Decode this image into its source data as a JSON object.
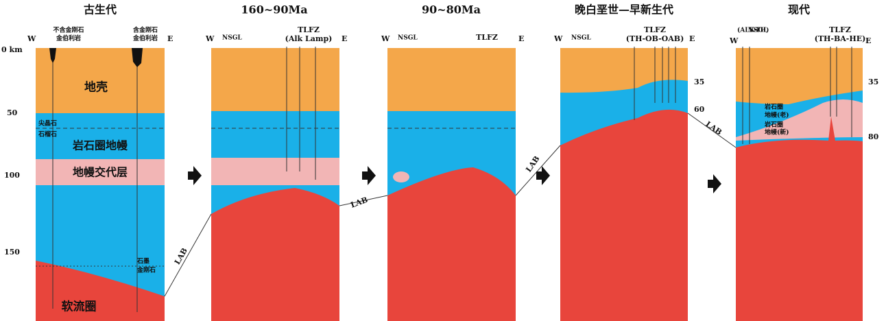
{
  "depth_axis": [
    "0 km",
    "50",
    "100",
    "150"
  ],
  "panels": [
    {
      "title": "古生代",
      "west": "W",
      "east": "E",
      "labels": [
        "不含金刚石",
        "金伯利岩",
        "含金刚石",
        "金伯利岩",
        "地壳",
        "尖晶石",
        "石榴石",
        "岩石圈地幔",
        "地幔交代层",
        "石墨",
        "金刚石",
        "软流圈",
        "LAB"
      ]
    },
    {
      "title": "160~90Ma",
      "west": "W",
      "east": "E",
      "labels": [
        "NSGL",
        "TLFZ",
        "(Alk Lamp)",
        "LAB"
      ]
    },
    {
      "title": "90~80Ma",
      "west": "W",
      "east": "E",
      "labels": [
        "NSGL",
        "TLFZ",
        "LAB"
      ]
    },
    {
      "title": "晚白垩世—早新生代",
      "west": "W",
      "east": "E",
      "labels": [
        "NSGL",
        "TLFZ",
        "(TH-OB-OAB)",
        "35",
        "60",
        "LAB"
      ]
    },
    {
      "title": "现代",
      "west": "W",
      "east": "E",
      "labels": [
        "(ALK-TH)",
        "NSGL",
        "TLFZ",
        "(TH-BA-HE)",
        "35",
        "80",
        "岩石圈",
        "地幔(老)",
        "岩石圈",
        "地幔(新)"
      ]
    }
  ]
}
